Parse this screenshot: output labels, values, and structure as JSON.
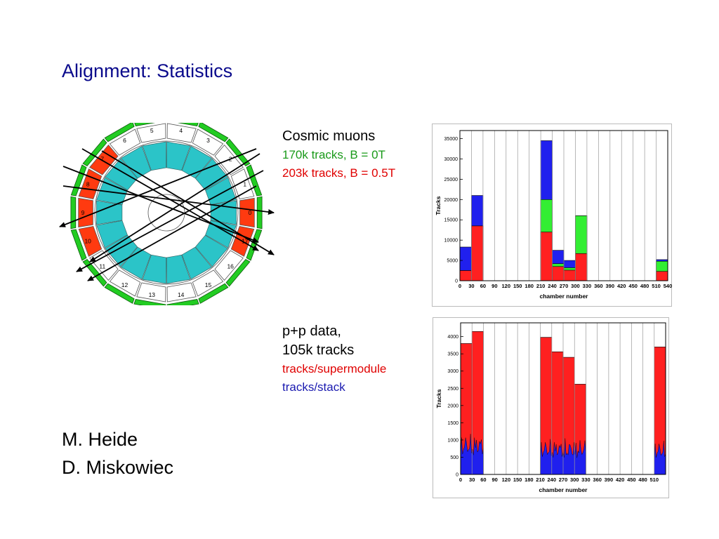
{
  "slide": {
    "title": "Alignment: Statistics"
  },
  "cosmic": {
    "heading": "Cosmic muons",
    "line_green": "170k tracks, B = 0T",
    "line_red": "203k tracks, B = 0.5T"
  },
  "pp": {
    "heading1": "p+p data,",
    "heading2": "105k tracks",
    "line_red": "tracks/supermodule",
    "line_blue": "tracks/stack"
  },
  "authors": [
    "M. Heide",
    "D. Miskowiec"
  ],
  "diagram": {
    "sector_labels": [
      "0",
      "1",
      "2",
      "3",
      "4",
      "5",
      "6",
      "7",
      "8",
      "9",
      "10",
      "11",
      "12",
      "13",
      "14",
      "15",
      "16",
      "17"
    ],
    "installed_sectors": [
      "0",
      "7",
      "8",
      "9",
      "10",
      "17"
    ]
  },
  "chart_data": [
    {
      "type": "bar",
      "title": "",
      "xlabel": "chamber number",
      "ylabel": "Tracks",
      "xlim": [
        0,
        540
      ],
      "ylim": [
        0,
        37000
      ],
      "x_ticks": [
        "0",
        "30",
        "60",
        "90",
        "120",
        "150",
        "180",
        "210",
        "240",
        "270",
        "300",
        "330",
        "360",
        "390",
        "420",
        "450",
        "480",
        "510",
        "540"
      ],
      "y_ticks": [
        "0",
        "5000",
        "10000",
        "15000",
        "20000",
        "25000",
        "30000",
        "35000"
      ],
      "colors": {
        "red": "#ff2020",
        "green": "#33ee33",
        "blue": "#2020ee"
      },
      "bars": [
        {
          "x0": 0,
          "x1": 30,
          "red": 2500,
          "green": 2500,
          "blue": 8300
        },
        {
          "x0": 30,
          "x1": 60,
          "red": 13500,
          "green": 13500,
          "blue": 21000
        },
        {
          "x0": 210,
          "x1": 240,
          "red": 12000,
          "green": 20000,
          "blue": 34500
        },
        {
          "x0": 240,
          "x1": 270,
          "red": 3500,
          "green": 4200,
          "blue": 7500
        },
        {
          "x0": 270,
          "x1": 300,
          "red": 2600,
          "green": 3200,
          "blue": 5000
        },
        {
          "x0": 300,
          "x1": 330,
          "red": 6700,
          "green": 16000,
          "blue": 16000
        },
        {
          "x0": 510,
          "x1": 540,
          "red": 2300,
          "green": 4800,
          "blue": 5200
        }
      ]
    },
    {
      "type": "bar",
      "title": "",
      "xlabel": "chamber number",
      "ylabel": "Tracks",
      "xlim": [
        0,
        540
      ],
      "ylim": [
        0,
        4400
      ],
      "x_ticks": [
        "0",
        "30",
        "60",
        "90",
        "120",
        "150",
        "180",
        "210",
        "240",
        "270",
        "300",
        "330",
        "360",
        "390",
        "420",
        "450",
        "480",
        "510"
      ],
      "y_ticks": [
        "0",
        "500",
        "1000",
        "1500",
        "2000",
        "2500",
        "3000",
        "3500",
        "4000"
      ],
      "colors": {
        "supermodule": "#ff2020",
        "stack": "#2020ee"
      },
      "series": [
        {
          "name": "tracks/supermodule",
          "bars": [
            {
              "x0": 0,
              "x1": 30,
              "value": 3800
            },
            {
              "x0": 30,
              "x1": 60,
              "value": 4150
            },
            {
              "x0": 210,
              "x1": 240,
              "value": 3980
            },
            {
              "x0": 240,
              "x1": 270,
              "value": 3560
            },
            {
              "x0": 270,
              "x1": 300,
              "value": 3400
            },
            {
              "x0": 300,
              "x1": 330,
              "value": 2620
            },
            {
              "x0": 510,
              "x1": 540,
              "value": 3700
            }
          ]
        },
        {
          "name": "tracks/stack",
          "bars": [
            {
              "x0": 0,
              "x1": 60,
              "value": 1200
            },
            {
              "x0": 210,
              "x1": 330,
              "value": 1050
            },
            {
              "x0": 510,
              "x1": 540,
              "value": 1000
            }
          ]
        }
      ]
    }
  ]
}
